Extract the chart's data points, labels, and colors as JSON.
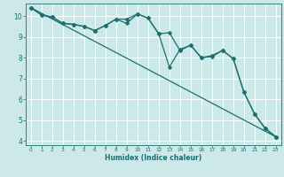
{
  "xlabel": "Humidex (Indice chaleur)",
  "bg_color": "#cde8e8",
  "grid_color": "#ffffff",
  "line_color": "#1a7070",
  "xlim": [
    -0.5,
    23.5
  ],
  "ylim": [
    3.8,
    10.6
  ],
  "yticks": [
    4,
    5,
    6,
    7,
    8,
    9,
    10
  ],
  "xticks": [
    0,
    1,
    2,
    3,
    4,
    5,
    6,
    7,
    8,
    9,
    10,
    11,
    12,
    13,
    14,
    15,
    16,
    17,
    18,
    19,
    20,
    21,
    22,
    23
  ],
  "line1_x": [
    0,
    1,
    2,
    3,
    4,
    5,
    6,
    7,
    8,
    9,
    10,
    11,
    12,
    13,
    14,
    15,
    16,
    17,
    18,
    19,
    20,
    21,
    22,
    23
  ],
  "line1_y": [
    10.4,
    10.05,
    9.95,
    9.65,
    9.6,
    9.5,
    9.3,
    9.55,
    9.85,
    9.85,
    10.1,
    9.9,
    9.15,
    9.2,
    8.35,
    8.6,
    8.0,
    8.1,
    8.35,
    7.95,
    6.35,
    5.3,
    4.6,
    4.2
  ],
  "line2_x": [
    0,
    1,
    2,
    3,
    4,
    5,
    6,
    7,
    8,
    9,
    10,
    11,
    12,
    13,
    14,
    15,
    16,
    17,
    18,
    19,
    20,
    21,
    22,
    23
  ],
  "line2_y": [
    10.4,
    10.05,
    9.95,
    9.65,
    9.6,
    9.5,
    9.3,
    9.55,
    9.85,
    9.65,
    10.1,
    9.9,
    9.15,
    7.55,
    8.4,
    8.6,
    8.0,
    8.05,
    8.35,
    7.95,
    6.35,
    5.3,
    4.6,
    4.2
  ],
  "line3_x": [
    0,
    23
  ],
  "line3_y": [
    10.4,
    4.2
  ]
}
